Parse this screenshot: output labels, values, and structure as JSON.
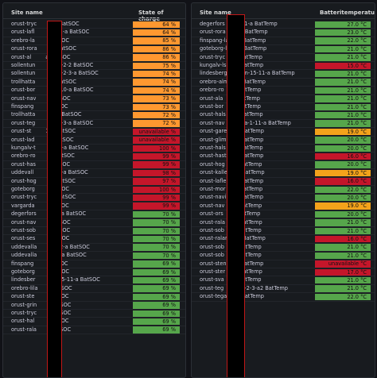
{
  "colors": {
    "orange": "#ff9830",
    "red": "#c4162a",
    "green": "#56a64b",
    "amber": "#f3a21b"
  },
  "left": {
    "header_site": "Site name",
    "header_value": "State of charge",
    "rows": [
      {
        "site": "orust-tryc",
        "suffix": "a2 BatSOC",
        "value": "64 %",
        "color": "orange"
      },
      {
        "site": "orust-lafl",
        "suffix": "-2-41-a BatSOC",
        "value": "64 %",
        "color": "orange"
      },
      {
        "site": "orebro-la",
        "suffix": "BatSOC",
        "value": "85 %",
        "color": "orange"
      },
      {
        "site": "orust-rora",
        "suffix": "a BatSOC",
        "value": "86 %",
        "color": "orange"
      },
      {
        "site": "orust-al",
        "suffix": "a BatSOC",
        "value": "86 %",
        "color": "orange"
      },
      {
        "site": "sollentun",
        "suffix": "man-2-2 BatSOC",
        "value": "75 %",
        "color": "orange"
      },
      {
        "site": "sollentun",
        "suffix": "man-2-3-a BatSOC",
        "value": "74 %",
        "color": "orange"
      },
      {
        "site": "trollhatta",
        "suffix": "-a BatSOC",
        "value": "74 %",
        "color": "orange"
      },
      {
        "site": "orust-bor",
        "suffix": "ren-10-a BatSOC",
        "value": "74 %",
        "color": "orange"
      },
      {
        "site": "orust-nav",
        "suffix": "BatSOC",
        "value": "73 %",
        "color": "orange"
      },
      {
        "site": "finspang",
        "suffix": "BatSOC",
        "value": "73 %",
        "color": "orange"
      },
      {
        "site": "trollhatta",
        "suffix": "-9-a BatSOC",
        "value": "72 %",
        "color": "orange"
      },
      {
        "site": "orust-teg",
        "suffix": "od-2-3-a BatSOC",
        "value": "72 %",
        "color": "orange"
      },
      {
        "site": "orust-st",
        "suffix": "1-a BatSOC",
        "value": "unavailable %",
        "color": "red"
      },
      {
        "site": "orust-lad",
        "suffix": "a BatSOC",
        "value": "unavailable %",
        "color": "red"
      },
      {
        "site": "kungalv-t",
        "suffix": "n-34-a BatSOC",
        "value": "100 %",
        "color": "red"
      },
      {
        "site": "orebro-ro",
        "suffix": "a BatSOC",
        "value": "99 %",
        "color": "red"
      },
      {
        "site": "orust-has",
        "suffix": "BatSOC",
        "value": "99 %",
        "color": "red"
      },
      {
        "site": "uddevall",
        "suffix": "v-1-7-a BatSOC",
        "value": "98 %",
        "color": "red"
      },
      {
        "site": "orust-hog",
        "suffix": "a BatSOC",
        "value": "97 %",
        "color": "red"
      },
      {
        "site": "goteborg",
        "suffix": "BatSOC",
        "value": "100 %",
        "color": "red"
      },
      {
        "site": "orust-tryc",
        "suffix": "a BatSOC",
        "value": "99 %",
        "color": "red"
      },
      {
        "site": "vargarda",
        "suffix": "BatSOC",
        "value": "99 %",
        "color": "red"
      },
      {
        "site": "degerfors",
        "suffix": "-11-a BatSOC",
        "value": "70 %",
        "color": "green"
      },
      {
        "site": "orust-nav",
        "suffix": "BatSOC",
        "value": "70 %",
        "color": "green"
      },
      {
        "site": "orust-sob",
        "suffix": "BatSOC",
        "value": "70 %",
        "color": "green"
      },
      {
        "site": "orust-ses",
        "suffix": "BatSOC",
        "value": "70 %",
        "color": "green"
      },
      {
        "site": "uddevalla",
        "suffix": "-112-a BatSOC",
        "value": "70 %",
        "color": "green"
      },
      {
        "site": "uddevalla",
        "suffix": "-23-a BatSOC",
        "value": "70 %",
        "color": "green"
      },
      {
        "site": "finspang",
        "suffix": "BatSOC",
        "value": "69 %",
        "color": "green"
      },
      {
        "site": "goteborg",
        "suffix": "BatSOC",
        "value": "69 %",
        "color": "green"
      },
      {
        "site": "lindesber",
        "suffix": "en-15-11-a BatSOC",
        "value": "69 %",
        "color": "green"
      },
      {
        "site": "orebro-lila",
        "suffix": "BatSOC",
        "value": "69 %",
        "color": "green"
      },
      {
        "site": "orust-ste",
        "suffix": "BatSOC",
        "value": "69 %",
        "color": "green"
      },
      {
        "site": "orust-grin",
        "suffix": "BatSOC",
        "value": "69 %",
        "color": "green"
      },
      {
        "site": "orust-tryc",
        "suffix": "BatSOC",
        "value": "69 %",
        "color": "green"
      },
      {
        "site": "orust-hal",
        "suffix": "BatSOC",
        "value": "69 %",
        "color": "green"
      },
      {
        "site": "orust-rala",
        "suffix": "BatSOC",
        "value": "69 %",
        "color": "green"
      }
    ]
  },
  "right": {
    "header_site": "Site name",
    "header_value": "Batteritemperatur",
    "rows": [
      {
        "site": "degerfors",
        "suffix": "-11-a BatTemp",
        "value": "27.0 °C",
        "color": "green"
      },
      {
        "site": "orust-rora",
        "suffix": "a BatTemp",
        "value": "23.0 °C",
        "color": "green"
      },
      {
        "site": "finspang-la",
        "suffix": "BatTemp",
        "value": "22.0 °C",
        "color": "green"
      },
      {
        "site": "goteborg-ls",
        "suffix": "BatTemp",
        "value": "21.0 °C",
        "color": "green"
      },
      {
        "site": "orust-tryc",
        "suffix": "BatTemp",
        "value": "21.0 °C",
        "color": "green"
      },
      {
        "site": "kungalv-ls",
        "suffix": "BatTemp",
        "value": "15.0 °C",
        "color": "red"
      },
      {
        "site": "lindesberg",
        "suffix": "en-15-11-a BatTemp",
        "value": "21.0 °C",
        "color": "green"
      },
      {
        "site": "orebro-alm",
        "suffix": "BatTemp",
        "value": "21.0 °C",
        "color": "green"
      },
      {
        "site": "orebro-ro",
        "suffix": "BatTemp",
        "value": "21.0 °C",
        "color": "green"
      },
      {
        "site": "orust-ala",
        "suffix": "BatTemp",
        "value": "21.0 °C",
        "color": "green"
      },
      {
        "site": "orust-bor",
        "suffix": "BatTemp",
        "value": "21.0 °C",
        "color": "green"
      },
      {
        "site": "orust-hals",
        "suffix": "BatTemp",
        "value": "21.0 °C",
        "color": "green"
      },
      {
        "site": "orust-nav",
        "suffix": "rga-1-11-a BatTemp",
        "value": "21.0 °C",
        "color": "green"
      },
      {
        "site": "orust-gare",
        "suffix": "BatTemp",
        "value": "19.0 °C",
        "color": "amber"
      },
      {
        "site": "orust-glim",
        "suffix": "BatTemp",
        "value": "20.0 °C",
        "color": "green"
      },
      {
        "site": "orust-hals",
        "suffix": "BatTemp",
        "value": "20.0 °C",
        "color": "green"
      },
      {
        "site": "orust-hast",
        "suffix": "BatTemp",
        "value": "16.0 °C",
        "color": "red"
      },
      {
        "site": "orust-hog",
        "suffix": "BatTemp",
        "value": "20.0 °C",
        "color": "green"
      },
      {
        "site": "orust-kalle",
        "suffix": "BatTemp",
        "value": "19.0 °C",
        "color": "amber"
      },
      {
        "site": "orust-lafle",
        "suffix": "BatTemp",
        "value": "16.0 °C",
        "color": "red"
      },
      {
        "site": "orust-mor",
        "suffix": "BatTemp",
        "value": "22.0 °C",
        "color": "green"
      },
      {
        "site": "orust-navi",
        "suffix": "BatTemp",
        "value": "20.0 °C",
        "color": "green"
      },
      {
        "site": "orust-nav",
        "suffix": "BatTemp",
        "value": "19.0 °C",
        "color": "amber"
      },
      {
        "site": "orust-ors",
        "suffix": "BatTemp",
        "value": "20.0 °C",
        "color": "green"
      },
      {
        "site": "orust-rala",
        "suffix": "BatTemp",
        "value": "21.0 °C",
        "color": "green"
      },
      {
        "site": "orust-sob",
        "suffix": "BatTemp",
        "value": "21.0 °C",
        "color": "green"
      },
      {
        "site": "orust-ralan",
        "suffix": "BatTemp",
        "value": "16.0 °C",
        "color": "red"
      },
      {
        "site": "orust-sob",
        "suffix": "BatTemp",
        "value": "21.0 °C",
        "color": "green"
      },
      {
        "site": "orust-sob",
        "suffix": "BatTemp",
        "value": "21.0 °C",
        "color": "green"
      },
      {
        "site": "orust-sten",
        "suffix": "BatTemp",
        "value": "unavailable °C",
        "color": "red"
      },
      {
        "site": "orust-ster",
        "suffix": "BatTemp",
        "value": "17.0 °C",
        "color": "red"
      },
      {
        "site": "orust-sva",
        "suffix": "BatTemp",
        "value": "21.0 °C",
        "color": "green"
      },
      {
        "site": "orust-teg",
        "suffix": "od-2-3-a2 BatTemp",
        "value": "21.0 °C",
        "color": "green"
      },
      {
        "site": "orust-tega",
        "suffix": "BatTemp",
        "value": "22.0 °C",
        "color": "green"
      }
    ]
  }
}
